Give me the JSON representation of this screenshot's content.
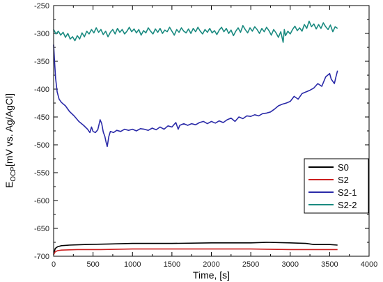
{
  "chart_data": {
    "type": "line",
    "xlabel": "Time, [s]",
    "ylabel": {
      "main": "E",
      "sub": "OCP",
      "rest": "[mV vs. Ag/AgCl]"
    },
    "xlim": [
      0,
      4000
    ],
    "ylim": [
      -700,
      -250
    ],
    "xticks": [
      "0",
      "500",
      "1000",
      "1500",
      "2000",
      "2500",
      "3000",
      "3500",
      "4000"
    ],
    "yticks": [
      "-250",
      "-300",
      "-350",
      "-400",
      "-450",
      "-500",
      "-550",
      "-600",
      "-650",
      "-700"
    ],
    "grid": false,
    "legend_position": "lower-right",
    "series": [
      {
        "name": "S0",
        "color": "#000000",
        "points": [
          [
            0,
            -697
          ],
          [
            20,
            -686
          ],
          [
            50,
            -683
          ],
          [
            100,
            -681
          ],
          [
            200,
            -680
          ],
          [
            400,
            -679
          ],
          [
            700,
            -678
          ],
          [
            1000,
            -677
          ],
          [
            1500,
            -677
          ],
          [
            2000,
            -676
          ],
          [
            2500,
            -676
          ],
          [
            2700,
            -675
          ],
          [
            3000,
            -676
          ],
          [
            3200,
            -677
          ],
          [
            3300,
            -679
          ],
          [
            3500,
            -679
          ],
          [
            3600,
            -680
          ]
        ]
      },
      {
        "name": "S2",
        "color": "#cc1f1f",
        "points": [
          [
            0,
            -697
          ],
          [
            20,
            -692
          ],
          [
            50,
            -690
          ],
          [
            100,
            -689
          ],
          [
            300,
            -688
          ],
          [
            600,
            -688
          ],
          [
            1000,
            -687
          ],
          [
            1500,
            -687
          ],
          [
            2000,
            -687
          ],
          [
            2500,
            -687
          ],
          [
            3000,
            -688
          ],
          [
            3300,
            -688
          ],
          [
            3600,
            -688
          ]
        ]
      },
      {
        "name": "S2-1",
        "color": "#2a2aa8",
        "points": [
          [
            0,
            -320
          ],
          [
            10,
            -345
          ],
          [
            25,
            -380
          ],
          [
            45,
            -405
          ],
          [
            70,
            -418
          ],
          [
            100,
            -424
          ],
          [
            150,
            -430
          ],
          [
            200,
            -440
          ],
          [
            260,
            -448
          ],
          [
            320,
            -458
          ],
          [
            380,
            -465
          ],
          [
            430,
            -472
          ],
          [
            460,
            -478
          ],
          [
            480,
            -468
          ],
          [
            500,
            -476
          ],
          [
            530,
            -478
          ],
          [
            560,
            -473
          ],
          [
            590,
            -455
          ],
          [
            610,
            -462
          ],
          [
            630,
            -477
          ],
          [
            650,
            -485
          ],
          [
            665,
            -495
          ],
          [
            680,
            -503
          ],
          [
            700,
            -485
          ],
          [
            720,
            -476
          ],
          [
            760,
            -478
          ],
          [
            800,
            -474
          ],
          [
            850,
            -476
          ],
          [
            900,
            -472
          ],
          [
            950,
            -474
          ],
          [
            1000,
            -472
          ],
          [
            1050,
            -475
          ],
          [
            1100,
            -471
          ],
          [
            1150,
            -472
          ],
          [
            1200,
            -474
          ],
          [
            1250,
            -470
          ],
          [
            1300,
            -473
          ],
          [
            1350,
            -468
          ],
          [
            1400,
            -472
          ],
          [
            1450,
            -466
          ],
          [
            1500,
            -468
          ],
          [
            1550,
            -460
          ],
          [
            1580,
            -472
          ],
          [
            1600,
            -465
          ],
          [
            1650,
            -462
          ],
          [
            1700,
            -465
          ],
          [
            1750,
            -462
          ],
          [
            1800,
            -464
          ],
          [
            1850,
            -460
          ],
          [
            1900,
            -458
          ],
          [
            1950,
            -462
          ],
          [
            2000,
            -458
          ],
          [
            2050,
            -461
          ],
          [
            2100,
            -457
          ],
          [
            2150,
            -460
          ],
          [
            2200,
            -455
          ],
          [
            2250,
            -452
          ],
          [
            2300,
            -458
          ],
          [
            2350,
            -450
          ],
          [
            2400,
            -453
          ],
          [
            2450,
            -448
          ],
          [
            2500,
            -449
          ],
          [
            2550,
            -446
          ],
          [
            2600,
            -448
          ],
          [
            2650,
            -444
          ],
          [
            2700,
            -443
          ],
          [
            2750,
            -441
          ],
          [
            2800,
            -436
          ],
          [
            2850,
            -430
          ],
          [
            2900,
            -427
          ],
          [
            2950,
            -425
          ],
          [
            3000,
            -422
          ],
          [
            3050,
            -413
          ],
          [
            3100,
            -418
          ],
          [
            3150,
            -408
          ],
          [
            3200,
            -405
          ],
          [
            3250,
            -402
          ],
          [
            3300,
            -398
          ],
          [
            3350,
            -390
          ],
          [
            3400,
            -395
          ],
          [
            3450,
            -378
          ],
          [
            3500,
            -372
          ],
          [
            3520,
            -382
          ],
          [
            3560,
            -390
          ],
          [
            3580,
            -378
          ],
          [
            3600,
            -367
          ]
        ]
      },
      {
        "name": "S2-2",
        "color": "#1a8a80",
        "points": [
          [
            0,
            -293
          ],
          [
            30,
            -301
          ],
          [
            60,
            -296
          ],
          [
            90,
            -303
          ],
          [
            120,
            -298
          ],
          [
            150,
            -307
          ],
          [
            180,
            -300
          ],
          [
            210,
            -310
          ],
          [
            240,
            -306
          ],
          [
            270,
            -313
          ],
          [
            300,
            -304
          ],
          [
            330,
            -310
          ],
          [
            360,
            -299
          ],
          [
            390,
            -306
          ],
          [
            420,
            -296
          ],
          [
            450,
            -301
          ],
          [
            480,
            -293
          ],
          [
            510,
            -299
          ],
          [
            540,
            -290
          ],
          [
            570,
            -298
          ],
          [
            600,
            -293
          ],
          [
            630,
            -302
          ],
          [
            660,
            -296
          ],
          [
            690,
            -306
          ],
          [
            720,
            -298
          ],
          [
            750,
            -293
          ],
          [
            780,
            -301
          ],
          [
            810,
            -291
          ],
          [
            840,
            -298
          ],
          [
            870,
            -293
          ],
          [
            900,
            -301
          ],
          [
            930,
            -296
          ],
          [
            960,
            -289
          ],
          [
            990,
            -297
          ],
          [
            1020,
            -292
          ],
          [
            1050,
            -299
          ],
          [
            1080,
            -293
          ],
          [
            1110,
            -303
          ],
          [
            1140,
            -295
          ],
          [
            1170,
            -299
          ],
          [
            1200,
            -290
          ],
          [
            1230,
            -296
          ],
          [
            1260,
            -301
          ],
          [
            1290,
            -292
          ],
          [
            1320,
            -298
          ],
          [
            1350,
            -291
          ],
          [
            1380,
            -300
          ],
          [
            1410,
            -294
          ],
          [
            1440,
            -297
          ],
          [
            1470,
            -289
          ],
          [
            1500,
            -296
          ],
          [
            1530,
            -303
          ],
          [
            1560,
            -293
          ],
          [
            1590,
            -298
          ],
          [
            1620,
            -290
          ],
          [
            1650,
            -296
          ],
          [
            1680,
            -299
          ],
          [
            1710,
            -292
          ],
          [
            1740,
            -300
          ],
          [
            1770,
            -291
          ],
          [
            1800,
            -297
          ],
          [
            1830,
            -289
          ],
          [
            1860,
            -296
          ],
          [
            1890,
            -301
          ],
          [
            1920,
            -293
          ],
          [
            1950,
            -298
          ],
          [
            1980,
            -291
          ],
          [
            2010,
            -299
          ],
          [
            2040,
            -295
          ],
          [
            2070,
            -302
          ],
          [
            2100,
            -294
          ],
          [
            2130,
            -289
          ],
          [
            2160,
            -297
          ],
          [
            2190,
            -291
          ],
          [
            2220,
            -300
          ],
          [
            2250,
            -294
          ],
          [
            2280,
            -304
          ],
          [
            2310,
            -296
          ],
          [
            2340,
            -290
          ],
          [
            2370,
            -298
          ],
          [
            2400,
            -286
          ],
          [
            2430,
            -293
          ],
          [
            2460,
            -299
          ],
          [
            2490,
            -290
          ],
          [
            2520,
            -296
          ],
          [
            2550,
            -288
          ],
          [
            2580,
            -293
          ],
          [
            2610,
            -300
          ],
          [
            2640,
            -291
          ],
          [
            2670,
            -297
          ],
          [
            2700,
            -289
          ],
          [
            2730,
            -295
          ],
          [
            2760,
            -303
          ],
          [
            2790,
            -293
          ],
          [
            2820,
            -299
          ],
          [
            2850,
            -307
          ],
          [
            2880,
            -297
          ],
          [
            2910,
            -316
          ],
          [
            2925,
            -293
          ],
          [
            2940,
            -304
          ],
          [
            2970,
            -296
          ],
          [
            3000,
            -301
          ],
          [
            3030,
            -293
          ],
          [
            3060,
            -287
          ],
          [
            3090,
            -295
          ],
          [
            3120,
            -290
          ],
          [
            3150,
            -296
          ],
          [
            3180,
            -284
          ],
          [
            3210,
            -291
          ],
          [
            3240,
            -278
          ],
          [
            3270,
            -288
          ],
          [
            3300,
            -283
          ],
          [
            3330,
            -292
          ],
          [
            3360,
            -284
          ],
          [
            3390,
            -291
          ],
          [
            3420,
            -281
          ],
          [
            3450,
            -288
          ],
          [
            3480,
            -293
          ],
          [
            3510,
            -285
          ],
          [
            3540,
            -297
          ],
          [
            3570,
            -288
          ],
          [
            3600,
            -291
          ]
        ]
      }
    ]
  }
}
